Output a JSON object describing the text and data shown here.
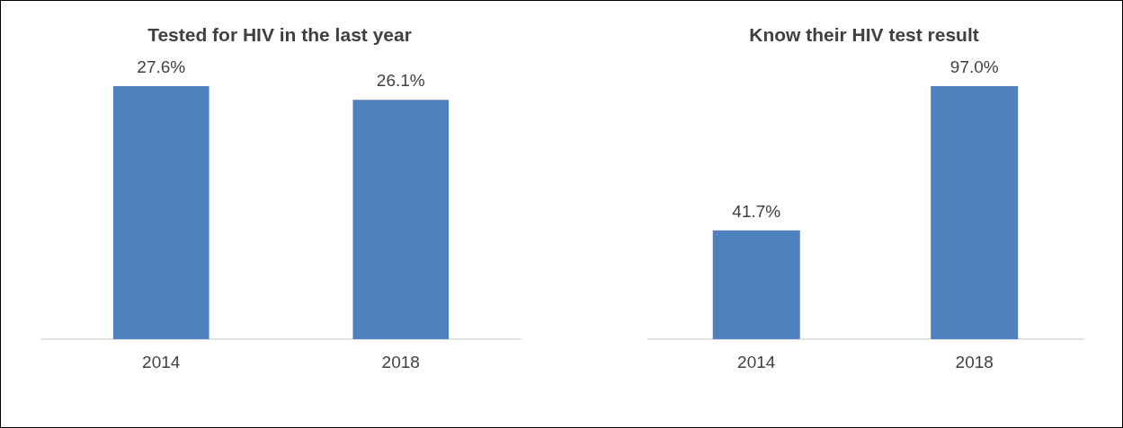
{
  "chart_data": [
    {
      "type": "bar",
      "title": "Tested for HIV in the last year",
      "categories": [
        "2014",
        "2018"
      ],
      "values": [
        27.6,
        26.1
      ],
      "value_labels": [
        "27.6%",
        "26.1%"
      ],
      "color": "#4f81bd"
    },
    {
      "type": "bar",
      "title": "Know their HIV test result",
      "categories": [
        "2014",
        "2018"
      ],
      "values": [
        41.7,
        97.0
      ],
      "value_labels": [
        "41.7%",
        "97.0%"
      ],
      "color": "#4f81bd"
    }
  ]
}
